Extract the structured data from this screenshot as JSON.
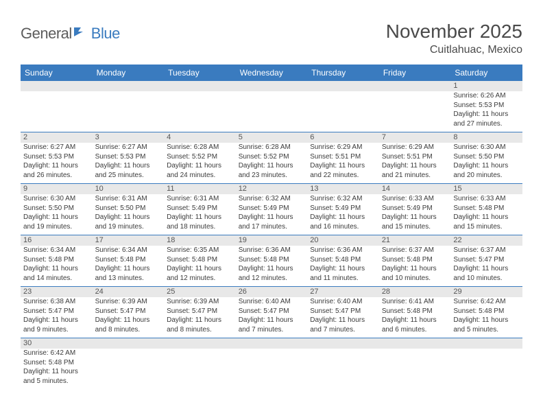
{
  "logo": {
    "part1": "General",
    "part2": "Blue"
  },
  "title": "November 2025",
  "location": "Cuitlahuac, Mexico",
  "colors": {
    "header_bg": "#3a7bbf",
    "header_text": "#ffffff",
    "daynum_bg": "#e8e8e8",
    "border": "#3a7bbf",
    "text": "#3a3a3a",
    "title_text": "#4a4a4a"
  },
  "typography": {
    "title_fontsize": 28,
    "location_fontsize": 16,
    "header_fontsize": 12,
    "daynum_fontsize": 11,
    "body_fontsize": 10
  },
  "days_of_week": [
    "Sunday",
    "Monday",
    "Tuesday",
    "Wednesday",
    "Thursday",
    "Friday",
    "Saturday"
  ],
  "weeks": [
    [
      null,
      null,
      null,
      null,
      null,
      null,
      {
        "n": "1",
        "sunrise": "Sunrise: 6:26 AM",
        "sunset": "Sunset: 5:53 PM",
        "daylight": "Daylight: 11 hours and 27 minutes."
      }
    ],
    [
      {
        "n": "2",
        "sunrise": "Sunrise: 6:27 AM",
        "sunset": "Sunset: 5:53 PM",
        "daylight": "Daylight: 11 hours and 26 minutes."
      },
      {
        "n": "3",
        "sunrise": "Sunrise: 6:27 AM",
        "sunset": "Sunset: 5:53 PM",
        "daylight": "Daylight: 11 hours and 25 minutes."
      },
      {
        "n": "4",
        "sunrise": "Sunrise: 6:28 AM",
        "sunset": "Sunset: 5:52 PM",
        "daylight": "Daylight: 11 hours and 24 minutes."
      },
      {
        "n": "5",
        "sunrise": "Sunrise: 6:28 AM",
        "sunset": "Sunset: 5:52 PM",
        "daylight": "Daylight: 11 hours and 23 minutes."
      },
      {
        "n": "6",
        "sunrise": "Sunrise: 6:29 AM",
        "sunset": "Sunset: 5:51 PM",
        "daylight": "Daylight: 11 hours and 22 minutes."
      },
      {
        "n": "7",
        "sunrise": "Sunrise: 6:29 AM",
        "sunset": "Sunset: 5:51 PM",
        "daylight": "Daylight: 11 hours and 21 minutes."
      },
      {
        "n": "8",
        "sunrise": "Sunrise: 6:30 AM",
        "sunset": "Sunset: 5:50 PM",
        "daylight": "Daylight: 11 hours and 20 minutes."
      }
    ],
    [
      {
        "n": "9",
        "sunrise": "Sunrise: 6:30 AM",
        "sunset": "Sunset: 5:50 PM",
        "daylight": "Daylight: 11 hours and 19 minutes."
      },
      {
        "n": "10",
        "sunrise": "Sunrise: 6:31 AM",
        "sunset": "Sunset: 5:50 PM",
        "daylight": "Daylight: 11 hours and 19 minutes."
      },
      {
        "n": "11",
        "sunrise": "Sunrise: 6:31 AM",
        "sunset": "Sunset: 5:49 PM",
        "daylight": "Daylight: 11 hours and 18 minutes."
      },
      {
        "n": "12",
        "sunrise": "Sunrise: 6:32 AM",
        "sunset": "Sunset: 5:49 PM",
        "daylight": "Daylight: 11 hours and 17 minutes."
      },
      {
        "n": "13",
        "sunrise": "Sunrise: 6:32 AM",
        "sunset": "Sunset: 5:49 PM",
        "daylight": "Daylight: 11 hours and 16 minutes."
      },
      {
        "n": "14",
        "sunrise": "Sunrise: 6:33 AM",
        "sunset": "Sunset: 5:49 PM",
        "daylight": "Daylight: 11 hours and 15 minutes."
      },
      {
        "n": "15",
        "sunrise": "Sunrise: 6:33 AM",
        "sunset": "Sunset: 5:48 PM",
        "daylight": "Daylight: 11 hours and 15 minutes."
      }
    ],
    [
      {
        "n": "16",
        "sunrise": "Sunrise: 6:34 AM",
        "sunset": "Sunset: 5:48 PM",
        "daylight": "Daylight: 11 hours and 14 minutes."
      },
      {
        "n": "17",
        "sunrise": "Sunrise: 6:34 AM",
        "sunset": "Sunset: 5:48 PM",
        "daylight": "Daylight: 11 hours and 13 minutes."
      },
      {
        "n": "18",
        "sunrise": "Sunrise: 6:35 AM",
        "sunset": "Sunset: 5:48 PM",
        "daylight": "Daylight: 11 hours and 12 minutes."
      },
      {
        "n": "19",
        "sunrise": "Sunrise: 6:36 AM",
        "sunset": "Sunset: 5:48 PM",
        "daylight": "Daylight: 11 hours and 12 minutes."
      },
      {
        "n": "20",
        "sunrise": "Sunrise: 6:36 AM",
        "sunset": "Sunset: 5:48 PM",
        "daylight": "Daylight: 11 hours and 11 minutes."
      },
      {
        "n": "21",
        "sunrise": "Sunrise: 6:37 AM",
        "sunset": "Sunset: 5:48 PM",
        "daylight": "Daylight: 11 hours and 10 minutes."
      },
      {
        "n": "22",
        "sunrise": "Sunrise: 6:37 AM",
        "sunset": "Sunset: 5:47 PM",
        "daylight": "Daylight: 11 hours and 10 minutes."
      }
    ],
    [
      {
        "n": "23",
        "sunrise": "Sunrise: 6:38 AM",
        "sunset": "Sunset: 5:47 PM",
        "daylight": "Daylight: 11 hours and 9 minutes."
      },
      {
        "n": "24",
        "sunrise": "Sunrise: 6:39 AM",
        "sunset": "Sunset: 5:47 PM",
        "daylight": "Daylight: 11 hours and 8 minutes."
      },
      {
        "n": "25",
        "sunrise": "Sunrise: 6:39 AM",
        "sunset": "Sunset: 5:47 PM",
        "daylight": "Daylight: 11 hours and 8 minutes."
      },
      {
        "n": "26",
        "sunrise": "Sunrise: 6:40 AM",
        "sunset": "Sunset: 5:47 PM",
        "daylight": "Daylight: 11 hours and 7 minutes."
      },
      {
        "n": "27",
        "sunrise": "Sunrise: 6:40 AM",
        "sunset": "Sunset: 5:47 PM",
        "daylight": "Daylight: 11 hours and 7 minutes."
      },
      {
        "n": "28",
        "sunrise": "Sunrise: 6:41 AM",
        "sunset": "Sunset: 5:48 PM",
        "daylight": "Daylight: 11 hours and 6 minutes."
      },
      {
        "n": "29",
        "sunrise": "Sunrise: 6:42 AM",
        "sunset": "Sunset: 5:48 PM",
        "daylight": "Daylight: 11 hours and 5 minutes."
      }
    ],
    [
      {
        "n": "30",
        "sunrise": "Sunrise: 6:42 AM",
        "sunset": "Sunset: 5:48 PM",
        "daylight": "Daylight: 11 hours and 5 minutes."
      },
      null,
      null,
      null,
      null,
      null,
      null
    ]
  ]
}
